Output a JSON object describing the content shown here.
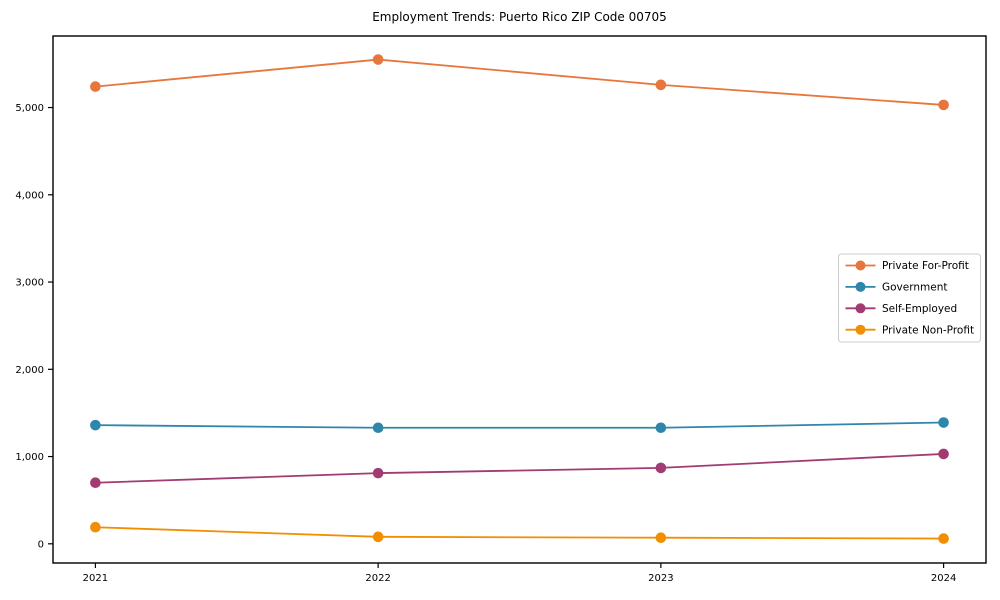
{
  "chart_data": {
    "type": "line",
    "title": "Employment Trends: Puerto Rico ZIP Code 00705",
    "x": [
      2021,
      2022,
      2023,
      2024
    ],
    "x_tick_labels": [
      "2021",
      "2022",
      "2023",
      "2024"
    ],
    "series": [
      {
        "name": "Private For-Profit",
        "color": "#E8763C",
        "values": [
          5240,
          5550,
          5260,
          5030
        ]
      },
      {
        "name": "Government",
        "color": "#2E86AB",
        "values": [
          1360,
          1330,
          1330,
          1390
        ]
      },
      {
        "name": "Self-Employed",
        "color": "#A23B72",
        "values": [
          700,
          810,
          870,
          1030
        ]
      },
      {
        "name": "Private Non-Profit",
        "color": "#F18F01",
        "values": [
          190,
          80,
          70,
          60
        ]
      }
    ],
    "xlabel": "",
    "ylabel": "",
    "xlim": [
      2020.85,
      2024.15
    ],
    "ylim": [
      -220,
      5820
    ],
    "yticks": [
      0,
      1000,
      2000,
      3000,
      4000,
      5000
    ],
    "ytick_labels": [
      "0",
      "1,000",
      "2,000",
      "3,000",
      "4,000",
      "5,000"
    ],
    "grid": false,
    "marker": "o",
    "legend": {
      "position": "center right",
      "border_color": "#cccccc",
      "background": "#ffffff",
      "entries": [
        "Private For-Profit",
        "Government",
        "Self-Employed",
        "Private Non-Profit"
      ]
    }
  }
}
